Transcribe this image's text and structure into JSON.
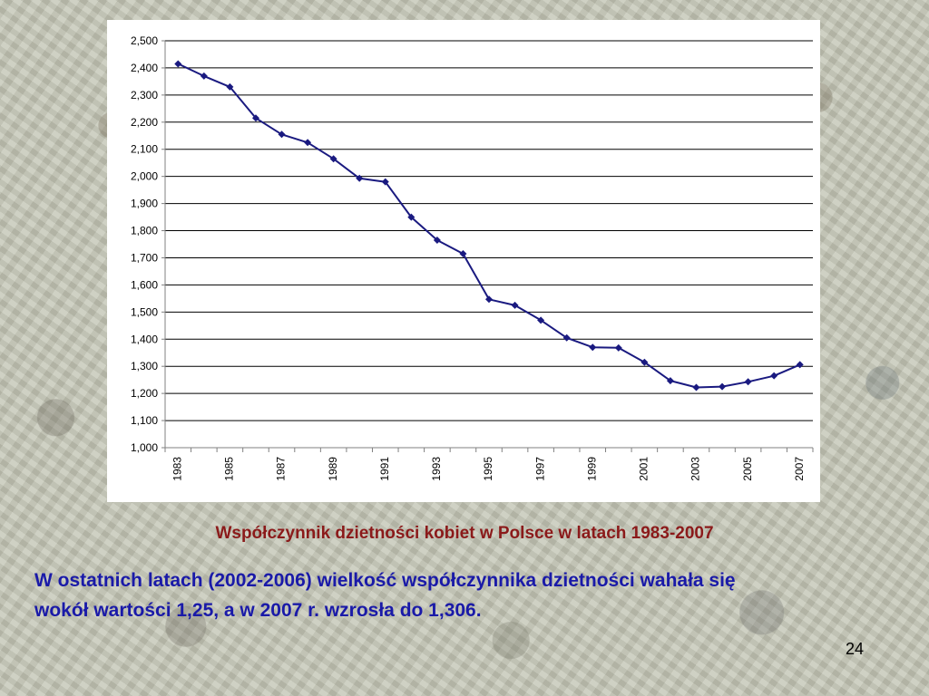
{
  "slide": {
    "caption": "Współczynnik dzietności kobiet w Polsce w latach 1983-2007",
    "text_line_1": "W ostatnich latach (2002-2006) wielkość współczynnika dzietności wahała się",
    "text_line_2": "wokół wartości 1,25, a w 2007 r. wzrosła do 1,306.",
    "page_number": "24"
  },
  "colors": {
    "line": "#1a1a80",
    "caption": "#8b1a1a",
    "body_text": "#1a1aa8",
    "gridline": "#000000"
  },
  "chart_data": {
    "type": "line",
    "title": "",
    "xlabel": "",
    "ylabel": "",
    "x": [
      1983,
      1984,
      1985,
      1986,
      1987,
      1988,
      1989,
      1990,
      1991,
      1992,
      1993,
      1994,
      1995,
      1996,
      1997,
      1998,
      1999,
      2000,
      2001,
      2002,
      2003,
      2004,
      2005,
      2006,
      2007
    ],
    "x_tick_labels": [
      "1983",
      "1985",
      "1987",
      "1989",
      "1991",
      "1993",
      "1995",
      "1997",
      "1999",
      "2001",
      "2003",
      "2005",
      "2007"
    ],
    "series": [
      {
        "values": [
          2.415,
          2.37,
          2.33,
          2.215,
          2.155,
          2.125,
          2.065,
          1.993,
          1.98,
          1.85,
          1.765,
          1.715,
          1.547,
          1.525,
          1.47,
          1.405,
          1.37,
          1.368,
          1.315,
          1.247,
          1.222,
          1.225,
          1.243,
          1.265,
          1.306
        ],
        "marker": "diamond"
      }
    ],
    "ylim": [
      1.0,
      2.5
    ],
    "y_ticks": [
      1.0,
      1.1,
      1.2,
      1.3,
      1.4,
      1.5,
      1.6,
      1.7,
      1.8,
      1.9,
      2.0,
      2.1,
      2.2,
      2.3,
      2.4,
      2.5
    ],
    "y_tick_labels": [
      "1,000",
      "1,100",
      "1,200",
      "1,300",
      "1,400",
      "1,500",
      "1,600",
      "1,700",
      "1,800",
      "1,900",
      "2,000",
      "2,100",
      "2,200",
      "2,300",
      "2,400",
      "2,500"
    ],
    "grid": true,
    "legend": "none"
  }
}
